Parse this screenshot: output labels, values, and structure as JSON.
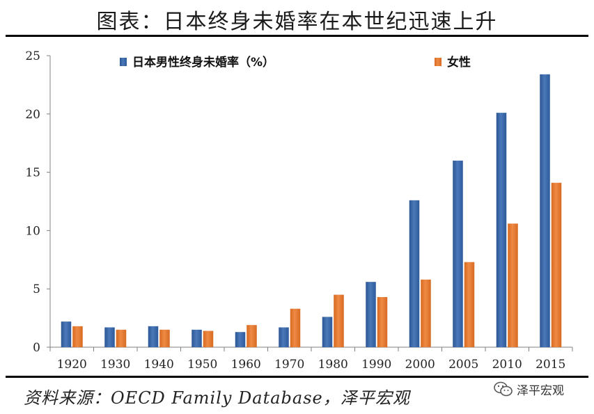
{
  "title": "图表：日本终身未婚率在本世纪迅速上升",
  "source": "资料来源：OECD Family Database，泽平宏观",
  "watermark": {
    "text": "泽平宏观",
    "icon": "wechat-icon"
  },
  "colors": {
    "male": "#4a78b8",
    "female": "#ee8a45",
    "axis": "#808080",
    "rule": "#000000"
  },
  "chart_data": {
    "type": "bar",
    "categories": [
      "1920",
      "1930",
      "1940",
      "1950",
      "1960",
      "1970",
      "1980",
      "1990",
      "2000",
      "2005",
      "2010",
      "2015"
    ],
    "series": [
      {
        "name": "日本男性终身未婚率（%）",
        "values": [
          2.2,
          1.7,
          1.8,
          1.5,
          1.3,
          1.7,
          2.6,
          5.6,
          12.6,
          16.0,
          20.1,
          23.4
        ]
      },
      {
        "name": "女性",
        "values": [
          1.8,
          1.5,
          1.5,
          1.4,
          1.9,
          3.3,
          4.5,
          4.3,
          5.8,
          7.3,
          10.6,
          14.1
        ]
      }
    ],
    "yticks": [
      "0",
      "5",
      "10",
      "15",
      "20",
      "25"
    ],
    "ylim": [
      0,
      25
    ],
    "xlabel": "",
    "ylabel": "",
    "grid": false,
    "legend": "top"
  }
}
